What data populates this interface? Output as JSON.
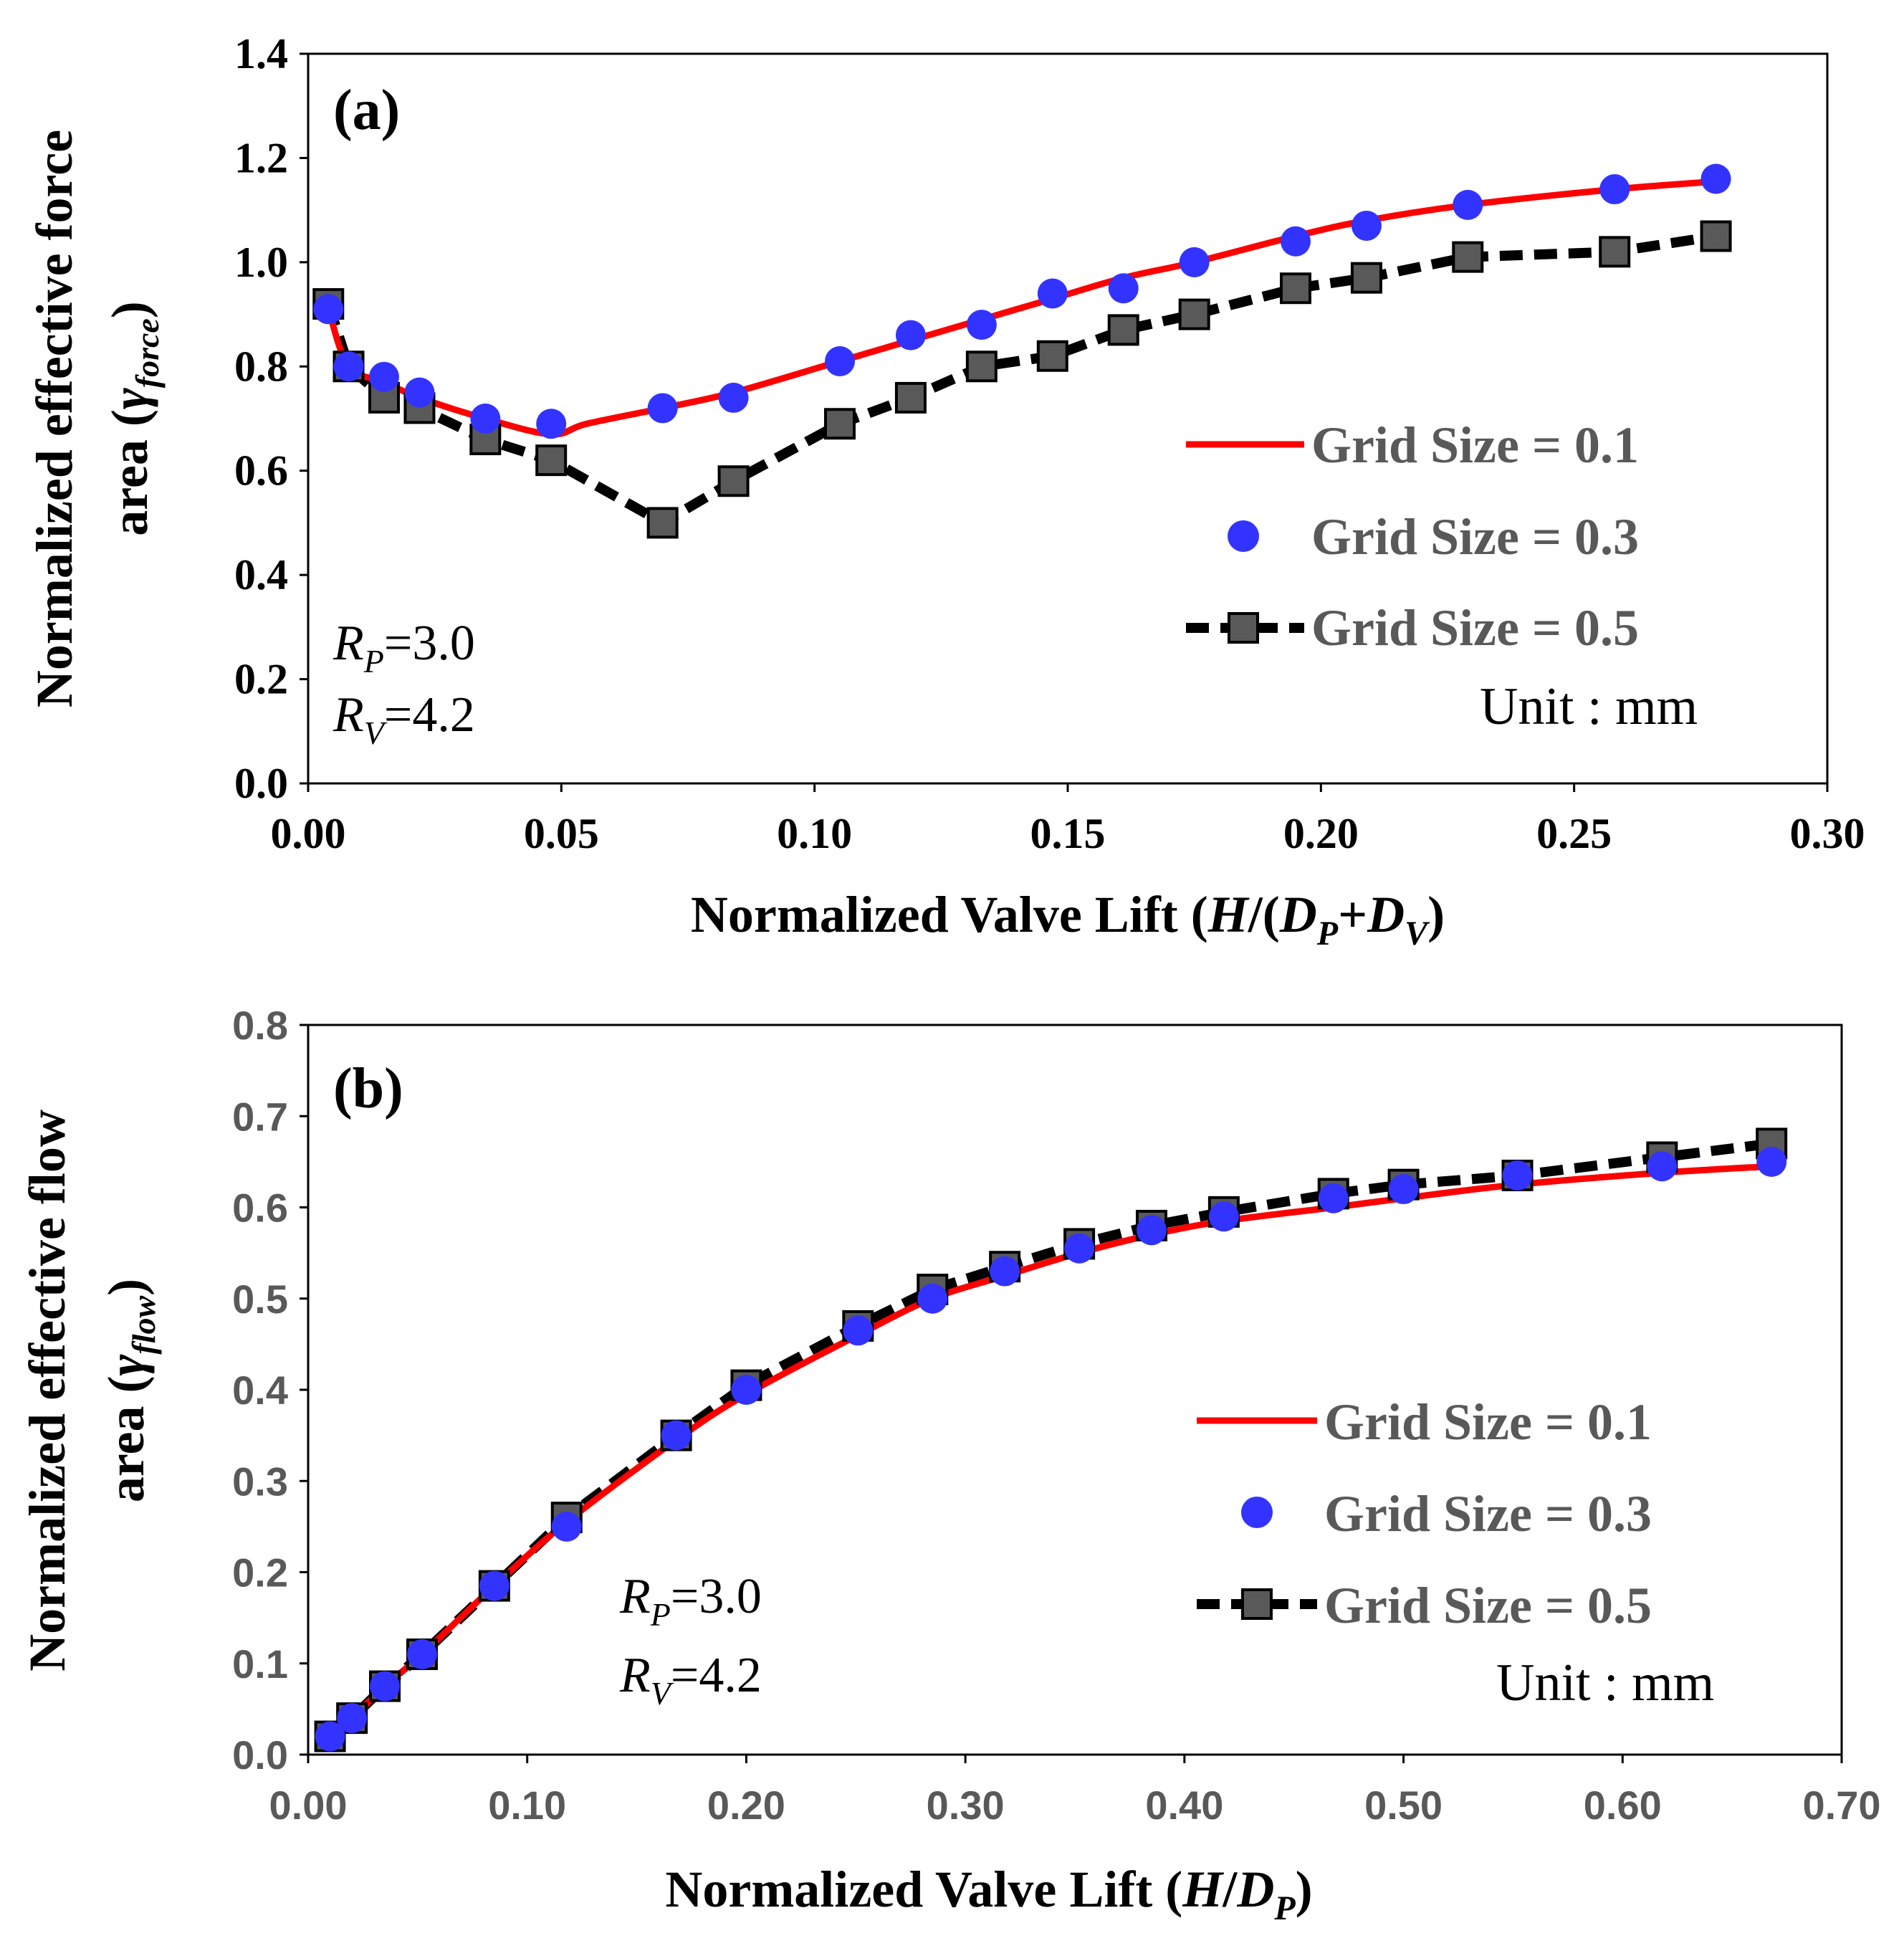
{
  "charts": [
    {
      "panel_label": "(a)",
      "xlabel": "Normalized Valve Lift (H/(DP+DV)",
      "ylabel_line1": "Normalized effective force",
      "ylabel_line2": "area (γforce)",
      "param_rp": "RP=3.0",
      "param_rv": "RV=4.2",
      "unit_note": "Unit : mm",
      "x_ticks": [
        "0.00",
        "0.05",
        "0.10",
        "0.15",
        "0.20",
        "0.25",
        "0.30"
      ],
      "y_ticks": [
        "0.0",
        "0.2",
        "0.4",
        "0.6",
        "0.8",
        "1.0",
        "1.2",
        "1.4"
      ],
      "legend": [
        "Grid Size = 0.1",
        "Grid Size = 0.3",
        "Grid Size = 0.5"
      ]
    },
    {
      "panel_label": "(b)",
      "xlabel": "Normalized Valve Lift (H/DP)",
      "ylabel_line1": "Normalized effective flow",
      "ylabel_line2": "area (γflow)",
      "param_rp": "RP=3.0",
      "param_rv": "RV=4.2",
      "unit_note": "Unit : mm",
      "x_ticks": [
        "0.00",
        "0.10",
        "0.20",
        "0.30",
        "0.40",
        "0.50",
        "0.60",
        "0.70"
      ],
      "y_ticks": [
        "0.0",
        "0.1",
        "0.2",
        "0.3",
        "0.4",
        "0.5",
        "0.6",
        "0.7",
        "0.8"
      ],
      "legend": [
        "Grid Size = 0.1",
        "Grid Size = 0.3",
        "Grid Size = 0.5"
      ]
    }
  ],
  "chart_data": [
    {
      "type": "line",
      "xlim": [
        0,
        0.3
      ],
      "ylim": [
        0,
        1.4
      ],
      "grid": false,
      "legend_position": "right",
      "colors": {
        "grid_0_1": "#ff0000",
        "grid_0_3": "#3333ff",
        "grid_0_5": "#000000",
        "marker_0_5": "#595959"
      },
      "series": [
        {
          "name": "Grid Size = 0.1",
          "style": "solid-line",
          "x": [
            0.004,
            0.008,
            0.015,
            0.022,
            0.035,
            0.048,
            0.055,
            0.07,
            0.084,
            0.105,
            0.119,
            0.133,
            0.147,
            0.161,
            0.175,
            0.195,
            0.209,
            0.229,
            0.258,
            0.278
          ],
          "y": [
            0.91,
            0.8,
            0.77,
            0.74,
            0.7,
            0.67,
            0.69,
            0.72,
            0.75,
            0.81,
            0.85,
            0.89,
            0.93,
            0.97,
            1.0,
            1.05,
            1.08,
            1.11,
            1.14,
            1.155
          ]
        },
        {
          "name": "Grid Size = 0.3",
          "style": "markers",
          "x": [
            0.004,
            0.008,
            0.015,
            0.022,
            0.035,
            0.048,
            0.07,
            0.084,
            0.105,
            0.119,
            0.133,
            0.147,
            0.161,
            0.175,
            0.195,
            0.209,
            0.229,
            0.258,
            0.278
          ],
          "y": [
            0.91,
            0.8,
            0.78,
            0.75,
            0.7,
            0.69,
            0.72,
            0.74,
            0.81,
            0.86,
            0.88,
            0.94,
            0.95,
            1.0,
            1.04,
            1.07,
            1.11,
            1.14,
            1.16
          ]
        },
        {
          "name": "Grid Size = 0.5",
          "style": "dashed-line-square",
          "x": [
            0.004,
            0.008,
            0.015,
            0.022,
            0.035,
            0.048,
            0.07,
            0.084,
            0.105,
            0.119,
            0.133,
            0.147,
            0.161,
            0.175,
            0.195,
            0.209,
            0.229,
            0.258,
            0.278
          ],
          "y": [
            0.92,
            0.8,
            0.74,
            0.72,
            0.66,
            0.62,
            0.5,
            0.58,
            0.69,
            0.74,
            0.8,
            0.82,
            0.87,
            0.9,
            0.95,
            0.97,
            1.01,
            1.02,
            1.05
          ]
        }
      ]
    },
    {
      "type": "line",
      "xlim": [
        0,
        0.7
      ],
      "ylim": [
        0,
        0.8
      ],
      "grid": false,
      "legend_position": "right",
      "colors": {
        "grid_0_1": "#ff0000",
        "grid_0_3": "#3333ff",
        "grid_0_5": "#000000",
        "marker_0_5": "#595959"
      },
      "series": [
        {
          "name": "Grid Size = 0.1",
          "style": "solid-line",
          "x": [
            0.01,
            0.02,
            0.035,
            0.052,
            0.085,
            0.118,
            0.168,
            0.2,
            0.251,
            0.285,
            0.318,
            0.352,
            0.385,
            0.418,
            0.468,
            0.5,
            0.552,
            0.618,
            0.668
          ],
          "y": [
            0.02,
            0.04,
            0.075,
            0.11,
            0.185,
            0.255,
            0.345,
            0.395,
            0.46,
            0.5,
            0.525,
            0.55,
            0.57,
            0.585,
            0.6,
            0.61,
            0.625,
            0.638,
            0.645
          ]
        },
        {
          "name": "Grid Size = 0.3",
          "style": "markers",
          "x": [
            0.01,
            0.02,
            0.035,
            0.052,
            0.085,
            0.118,
            0.168,
            0.2,
            0.251,
            0.285,
            0.318,
            0.352,
            0.385,
            0.418,
            0.468,
            0.5,
            0.552,
            0.618,
            0.668
          ],
          "y": [
            0.02,
            0.04,
            0.075,
            0.11,
            0.185,
            0.25,
            0.35,
            0.4,
            0.465,
            0.5,
            0.53,
            0.555,
            0.575,
            0.59,
            0.61,
            0.62,
            0.635,
            0.645,
            0.65
          ]
        },
        {
          "name": "Grid Size = 0.5",
          "style": "dashed-line-square",
          "x": [
            0.01,
            0.02,
            0.035,
            0.052,
            0.085,
            0.118,
            0.168,
            0.2,
            0.251,
            0.285,
            0.318,
            0.352,
            0.385,
            0.418,
            0.468,
            0.5,
            0.552,
            0.618,
            0.668
          ],
          "y": [
            0.02,
            0.04,
            0.075,
            0.11,
            0.185,
            0.26,
            0.35,
            0.405,
            0.47,
            0.51,
            0.535,
            0.56,
            0.58,
            0.595,
            0.615,
            0.625,
            0.635,
            0.655,
            0.67
          ]
        }
      ]
    }
  ]
}
